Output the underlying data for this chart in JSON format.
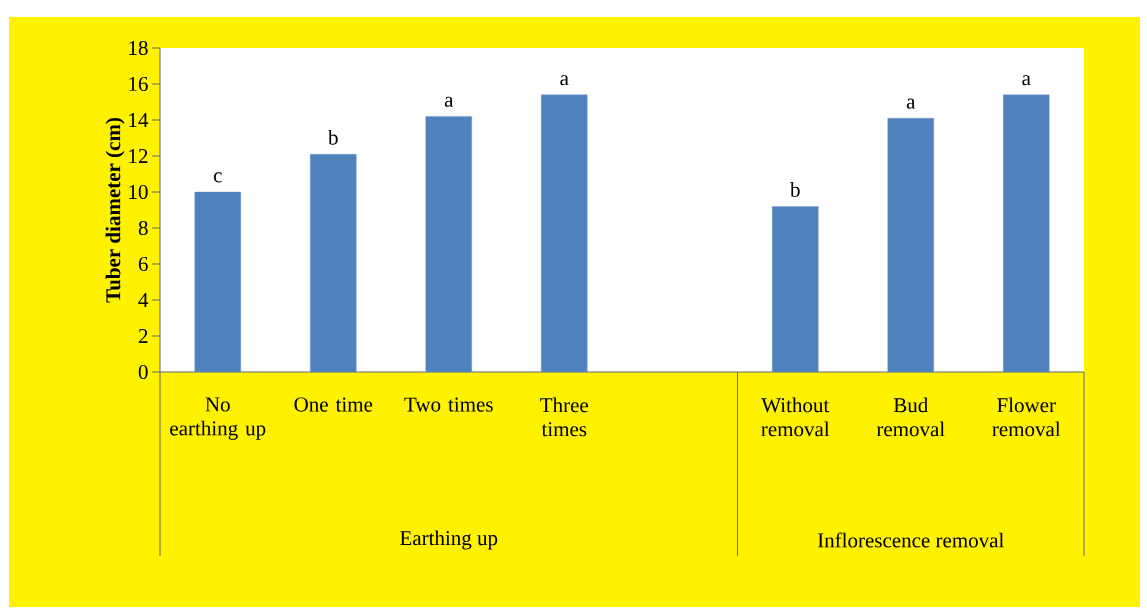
{
  "chart_data": {
    "type": "bar",
    "ylabel": "**Tuber diameter (cm)**",
    "categories": [
      "No earthing up",
      "One time",
      "Two times",
      "Three times",
      null,
      "Without removal",
      "Bud removal",
      "Flower removal"
    ],
    "values": [
      10.0,
      12.1,
      14.2,
      15.4,
      null,
      9.2,
      14.1,
      15.4
    ],
    "color": "#4f81bd",
    "ylim": [
      0,
      18
    ],
    "yticks": [
      0,
      2,
      4,
      6,
      8,
      10,
      12,
      14,
      16,
      18
    ],
    "annotations": [
      {
        "text": "c",
        "x": "No earthing up",
        "y": 10.0
      },
      {
        "text": "b",
        "x": "One time",
        "y": 12.1
      },
      {
        "text": "a",
        "x": "Two times",
        "y": 14.2
      },
      {
        "text": "a",
        "x": "Three times",
        "y": 15.4
      },
      {
        "text": "b",
        "x": "Without removal",
        "y": 9.2
      },
      {
        "text": "a",
        "x": "Bud removal",
        "y": 14.1
      },
      {
        "text": "a",
        "x": "Flower removal",
        "y": 15.4
      },
      "Earthing up",
      "Inflorescence removal"
    ]
  }
}
